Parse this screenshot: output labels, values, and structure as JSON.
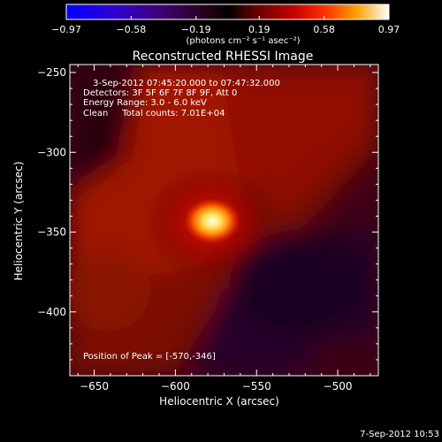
{
  "chart_data": {
    "type": "heatmap",
    "title": "Reconstructed RHESSI Image",
    "xlabel": "Heliocentric X (arcsec)",
    "ylabel": "Heliocentric Y (arcsec)",
    "xlim": [
      -665,
      -475
    ],
    "ylim": [
      -440,
      -245
    ],
    "xticks": [
      -650,
      -600,
      -550,
      -500
    ],
    "xtick_labels": [
      "−650",
      "−600",
      "−550",
      "−500"
    ],
    "yticks": [
      -250,
      -300,
      -350,
      -400
    ],
    "ytick_labels": [
      "−250",
      "−300",
      "−350",
      "−400"
    ],
    "colorbar": {
      "min": -0.97,
      "max": 0.97,
      "ticks": [
        -0.97,
        -0.58,
        -0.19,
        0.19,
        0.58,
        0.97
      ],
      "tick_labels": [
        "−0.97",
        "−0.58",
        "−0.19",
        "0.19",
        "0.58",
        "0.97"
      ],
      "label": "(photons cm⁻² s⁻¹ asec⁻²)",
      "colormap": [
        "#0000ff",
        "#4000c0",
        "#400060",
        "#000000",
        "#600000",
        "#c00000",
        "#ff4000",
        "#ff9000",
        "#ffd000",
        "#ffffff"
      ]
    },
    "annotations": [
      "3-Sep-2012 07:45:20.000 to 07:47:32.000",
      "Detectors: 3F 5F 6F 7F 8F 9F, Att 0",
      "Energy Range: 3.0 - 6.0 keV",
      "Clean     Total counts: 7.01E+04"
    ],
    "peak_label": "Position of Peak = [-570,-346]",
    "peak": {
      "x": -570,
      "y": -346
    },
    "timestamp": "7-Sep-2012 10:53"
  }
}
